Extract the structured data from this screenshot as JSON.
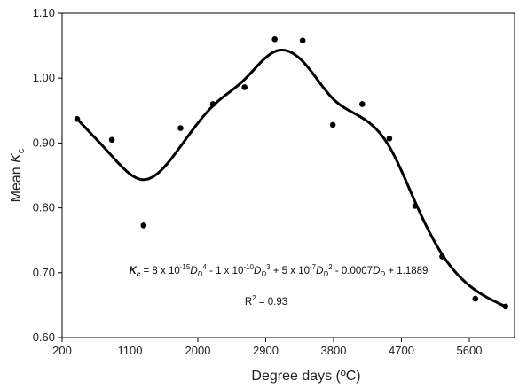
{
  "chart_data": {
    "type": "scatter",
    "xlabel": "Degree days (ºC)",
    "ylabel": {
      "main": "Mean ",
      "var": "K",
      "sub": "c"
    },
    "xlim": [
      200,
      6200
    ],
    "ylim": [
      0.6,
      1.1
    ],
    "xticks": [
      200,
      1100,
      2000,
      2900,
      3800,
      4700,
      5600
    ],
    "xtick_labels": [
      "200",
      "1100",
      "2000",
      "2900",
      "3800",
      "4700",
      "5600"
    ],
    "yticks": [
      0.6,
      0.7,
      0.8,
      0.9,
      1.0,
      1.1
    ],
    "ytick_labels": [
      "0.60",
      "0.70",
      "0.80",
      "0.90",
      "1.00",
      "1.10"
    ],
    "grid": false,
    "points": [
      {
        "x": 400,
        "y": 0.937
      },
      {
        "x": 860,
        "y": 0.905
      },
      {
        "x": 1280,
        "y": 0.773
      },
      {
        "x": 1770,
        "y": 0.923
      },
      {
        "x": 2200,
        "y": 0.96
      },
      {
        "x": 2620,
        "y": 0.986
      },
      {
        "x": 3020,
        "y": 1.06
      },
      {
        "x": 3390,
        "y": 1.058
      },
      {
        "x": 3790,
        "y": 0.928
      },
      {
        "x": 4180,
        "y": 0.96
      },
      {
        "x": 4540,
        "y": 0.907
      },
      {
        "x": 4880,
        "y": 0.803
      },
      {
        "x": 5240,
        "y": 0.725
      },
      {
        "x": 5680,
        "y": 0.66
      },
      {
        "x": 6080,
        "y": 0.648
      }
    ],
    "trendline": {
      "type": "polynomial",
      "x_range": [
        400,
        6080
      ],
      "coefficients_desc": [
        8e-15,
        -1e-10,
        5e-07,
        -0.0007,
        1.1889
      ]
    },
    "equation": {
      "lhs_var": "K",
      "lhs_sub": "c",
      "t1": " = 8 x 10",
      "e1": "-15",
      "d1": "D",
      "ds1": "D",
      "p1": "4",
      "t2": " - 1 x 10",
      "e2": "-10",
      "d2": "D",
      "ds2": "D",
      "p2": "3",
      "t3": " + 5 x 10",
      "e3": "-7",
      "d3": "D",
      "ds3": "D",
      "p3": "2",
      "t4": " - 0.0007",
      "d4": "D",
      "ds4": "D",
      "t5": " + 1.1889"
    },
    "r2": {
      "base": "R",
      "sup": "2",
      "rest": " = 0.93"
    }
  }
}
